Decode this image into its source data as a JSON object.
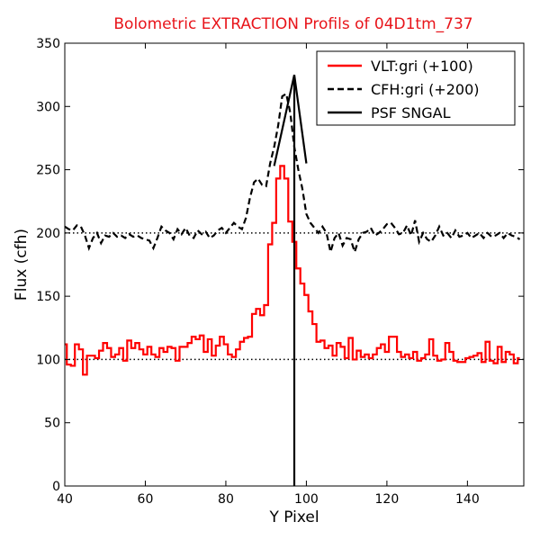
{
  "chart_data": {
    "type": "line",
    "title": "Bolometric EXTRACTION Profils of 04D1tm_737",
    "xlabel": "Y Pixel",
    "ylabel": "Flux (cfh)",
    "xlim": [
      40,
      154
    ],
    "ylim": [
      0,
      350
    ],
    "xticks": [
      40,
      60,
      80,
      100,
      120,
      140
    ],
    "yticks": [
      0,
      50,
      100,
      150,
      200,
      250,
      300,
      350
    ],
    "grid": false,
    "legend_position": "top-right",
    "reference_lines": [
      {
        "y": 100,
        "style": "dotted",
        "color": "#000000"
      },
      {
        "y": 200,
        "style": "dotted",
        "color": "#000000"
      }
    ],
    "series": [
      {
        "name": "VLT:gri (+100)",
        "color": "#ff0000",
        "style": "steps",
        "x": [
          40,
          41,
          42,
          43,
          44,
          45,
          46,
          47,
          48,
          49,
          50,
          51,
          52,
          53,
          54,
          55,
          56,
          57,
          58,
          59,
          60,
          61,
          62,
          63,
          64,
          65,
          66,
          67,
          68,
          69,
          70,
          71,
          72,
          73,
          74,
          75,
          76,
          77,
          78,
          79,
          80,
          81,
          82,
          83,
          84,
          85,
          86,
          87,
          88,
          89,
          90,
          91,
          92,
          93,
          94,
          95,
          96,
          97,
          98,
          99,
          100,
          101,
          102,
          103,
          104,
          105,
          106,
          107,
          108,
          109,
          110,
          111,
          112,
          113,
          114,
          115,
          116,
          117,
          118,
          119,
          120,
          121,
          122,
          123,
          124,
          125,
          126,
          127,
          128,
          129,
          130,
          131,
          132,
          133,
          134,
          135,
          136,
          137,
          138,
          139,
          140,
          141,
          142,
          143,
          144,
          145,
          146,
          147,
          148,
          149,
          150,
          151,
          152,
          153
        ],
        "values": [
          112,
          96,
          95,
          112,
          108,
          88,
          103,
          103,
          101,
          107,
          113,
          109,
          102,
          104,
          109,
          99,
          115,
          109,
          113,
          108,
          104,
          110,
          104,
          102,
          109,
          106,
          110,
          109,
          99,
          110,
          110,
          113,
          118,
          116,
          119,
          106,
          116,
          103,
          111,
          118,
          112,
          104,
          102,
          108,
          114,
          117,
          118,
          136,
          140,
          135,
          143,
          191,
          208,
          243,
          253,
          243,
          209,
          193,
          172,
          160,
          151,
          138,
          128,
          114,
          115,
          109,
          111,
          103,
          113,
          110,
          101,
          117,
          100,
          107,
          102,
          104,
          101,
          104,
          109,
          112,
          106,
          118,
          118,
          106,
          102,
          104,
          101,
          106,
          99,
          101,
          104,
          116,
          103,
          99,
          100,
          113,
          106,
          99,
          98,
          98,
          101,
          102,
          103,
          105,
          98,
          114,
          99,
          97,
          110,
          98,
          106,
          104,
          97,
          101
        ]
      },
      {
        "name": "CFH:gri (+200)",
        "color": "#000000",
        "style": "dashed",
        "x": [
          40,
          41,
          42,
          43,
          44,
          45,
          46,
          47,
          48,
          49,
          50,
          51,
          52,
          53,
          54,
          55,
          56,
          57,
          58,
          59,
          60,
          61,
          62,
          63,
          64,
          65,
          66,
          67,
          68,
          69,
          70,
          71,
          72,
          73,
          74,
          75,
          76,
          77,
          78,
          79,
          80,
          81,
          82,
          83,
          84,
          85,
          86,
          87,
          88,
          89,
          90,
          91,
          92,
          93,
          94,
          95,
          96,
          97,
          98,
          99,
          100,
          101,
          102,
          103,
          104,
          105,
          106,
          107,
          108,
          109,
          110,
          111,
          112,
          113,
          114,
          115,
          116,
          117,
          118,
          119,
          120,
          121,
          122,
          123,
          124,
          125,
          126,
          127,
          128,
          129,
          130,
          131,
          132,
          133,
          134,
          135,
          136,
          137,
          138,
          139,
          140,
          141,
          142,
          143,
          144,
          145,
          146,
          147,
          148,
          149,
          150,
          151,
          152,
          153
        ],
        "values": [
          205,
          203,
          202,
          206,
          205,
          198,
          188,
          196,
          200,
          192,
          198,
          197,
          200,
          197,
          198,
          196,
          199,
          197,
          198,
          196,
          195,
          194,
          188,
          196,
          205,
          202,
          200,
          195,
          203,
          199,
          204,
          198,
          196,
          202,
          199,
          201,
          196,
          198,
          202,
          204,
          200,
          204,
          208,
          205,
          203,
          212,
          228,
          240,
          243,
          238,
          237,
          255,
          268,
          285,
          308,
          310,
          295,
          268,
          250,
          235,
          215,
          208,
          204,
          200,
          205,
          200,
          185,
          196,
          200,
          190,
          196,
          195,
          185,
          195,
          200,
          201,
          204,
          198,
          200,
          203,
          207,
          208,
          204,
          199,
          200,
          206,
          198,
          210,
          193,
          200,
          195,
          193,
          198,
          205,
          198,
          200,
          196,
          202,
          197,
          198,
          200,
          196,
          198,
          200,
          196,
          200,
          197,
          198,
          200,
          196,
          200,
          198,
          197,
          195
        ]
      },
      {
        "name": "PSF SNGAL",
        "color": "#000000",
        "style": "solid",
        "x": [
          92,
          97,
          97,
          97,
          100
        ],
        "values": [
          253,
          325,
          0,
          325,
          255
        ]
      }
    ]
  }
}
